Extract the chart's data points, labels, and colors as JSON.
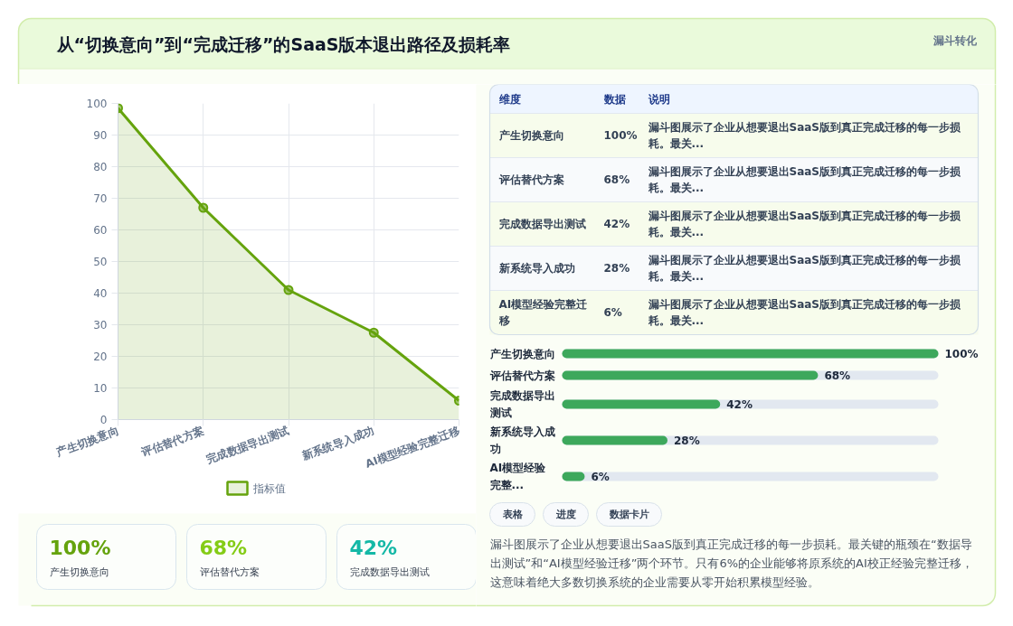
{
  "chart_data": [
    {
      "type": "other",
      "title": "从“切换意向”到“完成迁移”的SaaS版本退出路径及损耗率",
      "subtitle": "漏斗转化"
    },
    {
      "type": "area",
      "categories": [
        "产生切换意向",
        "评估替代方案",
        "完成数据导出测试",
        "新系统导入成功",
        "AI模型经验完整迁移"
      ],
      "series": [
        {
          "name": "指标值",
          "color": "#65a30d",
          "values": [
            98.5,
            67,
            41,
            27.5,
            6
          ]
        }
      ],
      "ylim": [
        0,
        100
      ],
      "yticks": [
        0,
        10,
        20,
        30,
        40,
        50,
        60,
        70,
        80,
        90,
        100
      ],
      "grid": true,
      "legend": "bottom",
      "marker": "circle",
      "line_style": "solid"
    },
    {
      "type": "other",
      "categories": [
        "产生切换意向",
        "评估替代方案",
        "完成数据导出测试",
        "新系统导入成功",
        "AI模型经验完整迁移"
      ],
      "value_labels": [
        "100%",
        "68%",
        "42%",
        "28%",
        "6%"
      ],
      "annotations": [
        "维度",
        "数据",
        "说明",
        "漏斗图展示了企业从想要退出SaaS版到真正完成迁移的每一步损耗。最关...",
        "漏斗图展示了企业从想要退出SaaS版到真正完成迁移的每一步损耗。最关...",
        "漏斗图展示了企业从想要退出SaaS版到真正完成迁移的每一步损耗。最关...",
        "漏斗图展示了企业从想要退出SaaS版到真正完成迁移的每一步损耗。最关...",
        "漏斗图展示了企业从想要退出SaaS版到真正完成迁移的每一步损耗。最关..."
      ]
    },
    {
      "type": "bar",
      "orientation": "horizontal",
      "categories": [
        "产生切换意向",
        "评估替代方案",
        "完成数据导出测试",
        "新系统导入成功",
        "AI模型经验完整..."
      ],
      "values": [
        100,
        68,
        42,
        28,
        6
      ],
      "value_labels": [
        "100%",
        "68%",
        "42%",
        "28%",
        "6%"
      ],
      "color": "#3da85c",
      "tick_labels": "y"
    },
    {
      "type": "other",
      "categories": [
        "产生切换意向",
        "评估替代方案",
        "完成数据导出测试"
      ],
      "value_labels": [
        "100%",
        "68%",
        "42%"
      ]
    },
    {
      "type": "other",
      "categories": [
        "表格",
        "进度",
        "数据卡片"
      ],
      "annotations": [
        "漏斗图展示了企业从想要退出SaaS版到真正完成迁移的每一步损耗。最关键的瓶颈在“数据导出测试”和“AI模型经验迁移”两个环节。只有6%的企业能够将原系统的AI校正经验完整迁移，这意味着绝大多数切换系统的企业需要从零开始积累模型经验。"
      ]
    }
  ]
}
